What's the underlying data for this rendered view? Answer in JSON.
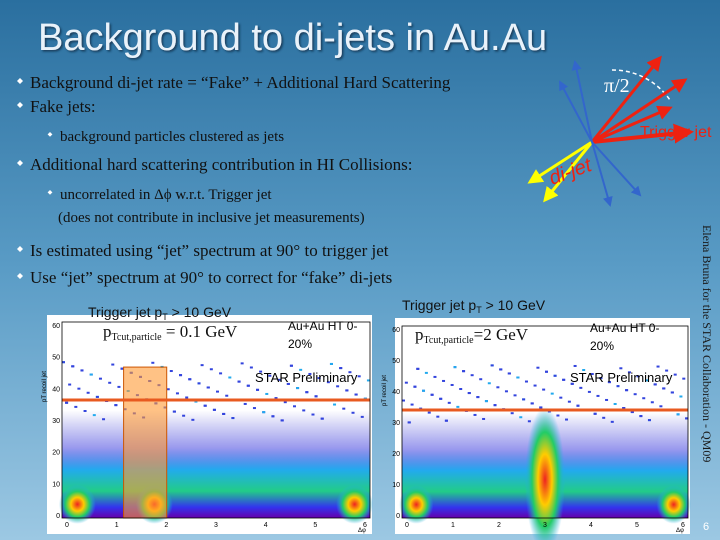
{
  "title": "Background to di-jets in Au.Au",
  "bullets": [
    {
      "text": "Background di-jet rate = “Fake” + Additional Hard Scattering"
    },
    {
      "text": "Fake jets:",
      "sub": [
        "background particles clustered as jets"
      ]
    },
    {
      "text": "Additional hard scattering contribution in HI Collisions:",
      "sub": [
        "uncorrelated in Δϕ  w.r.t. Trigger jet"
      ],
      "note": "(does not contribute in inclusive jet measurements)"
    },
    {
      "text": "Is estimated using “jet” spectrum at 90° to trigger jet"
    },
    {
      "text": "Use “jet” spectrum at 90° to correct for “fake” di-jets"
    }
  ],
  "diagram": {
    "angle": "π/2",
    "trigger": "Trigger jet",
    "dijet": "di-jet"
  },
  "plots": [
    {
      "trigger": [
        "Trigger jet p",
        "T",
        " > 10 GeV"
      ],
      "cut": [
        "p",
        "Tcut,particle",
        " = 0.1 GeV"
      ],
      "collision": [
        "Au+Au HT 0-",
        "20%"
      ],
      "preliminary": "STAR Preliminary"
    },
    {
      "trigger": [
        "Trigger jet p",
        "T",
        " > 10 GeV"
      ],
      "cut": [
        "p",
        "Tcut,particle",
        "=2 GeV"
      ],
      "collision": [
        "Au+Au HT 0-",
        "20%"
      ],
      "preliminary": "STAR Preliminary"
    }
  ],
  "axes": {
    "ylabel": "pT recoil jet",
    "xlabel": "Δφ",
    "xticks": [
      "0",
      "1",
      "2",
      "3",
      "4",
      "5",
      "6"
    ],
    "yticks": [
      "0",
      "10",
      "20",
      "30",
      "40",
      "50",
      "60"
    ]
  },
  "credit": "Elena Bruna for the STAR Collaboration - QM09",
  "page": "6"
}
